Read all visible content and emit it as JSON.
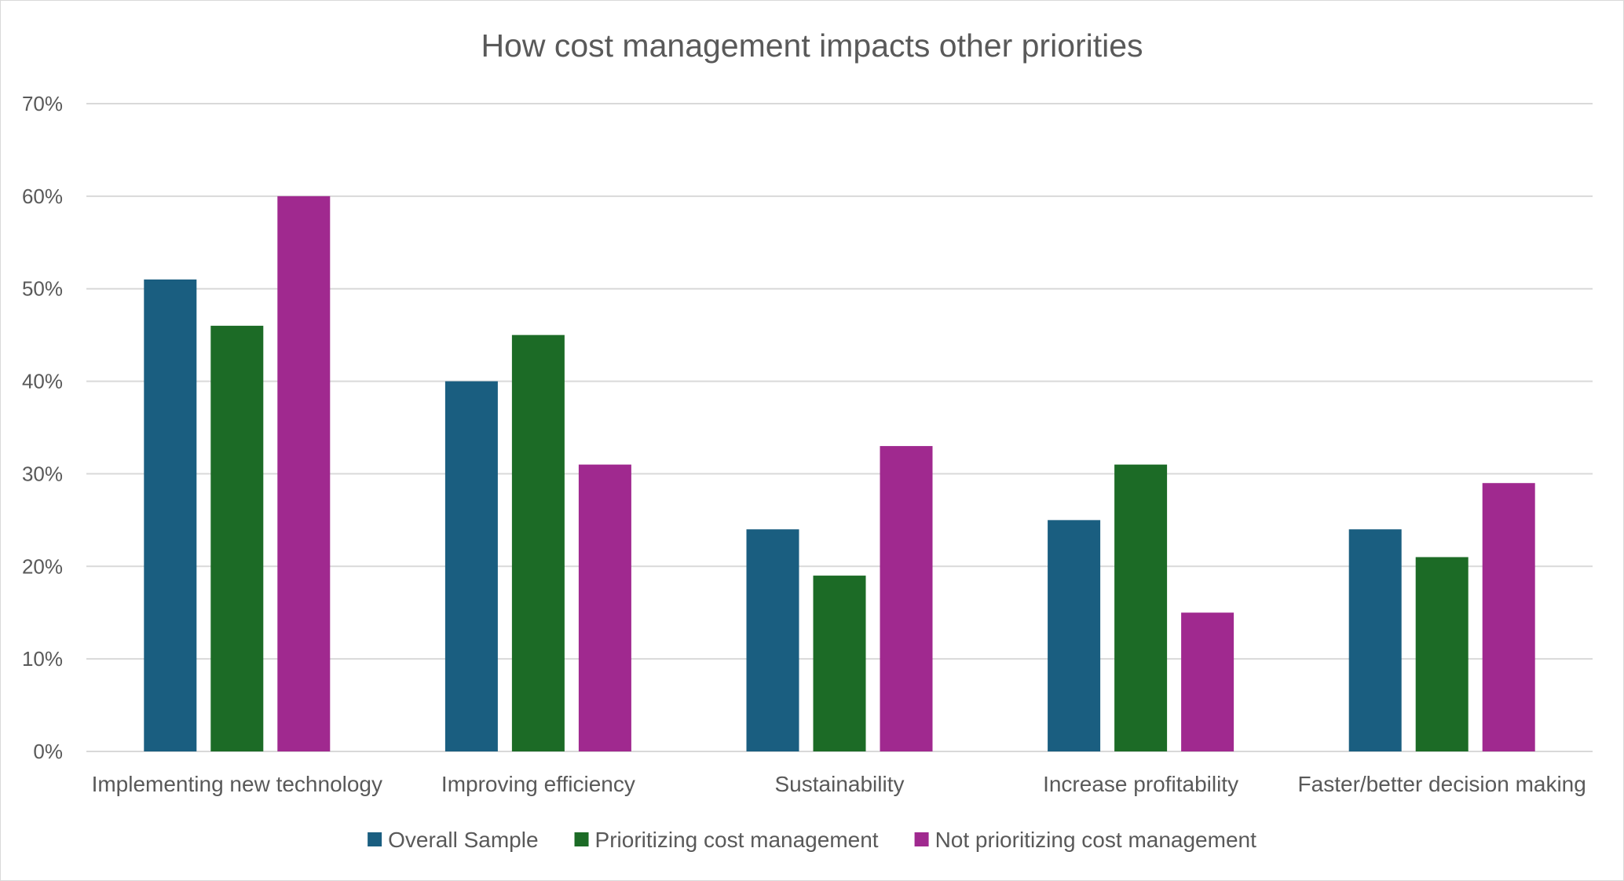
{
  "chart_data": {
    "type": "bar",
    "title": "How cost management impacts other priorities",
    "categories": [
      "Implementing new technology",
      "Improving efficiency",
      "Sustainability",
      "Increase profitability",
      "Faster/better decision making"
    ],
    "series": [
      {
        "name": "Overall Sample",
        "color": "#1a5e80",
        "values": [
          51,
          40,
          24,
          25,
          24
        ]
      },
      {
        "name": "Prioritizing cost management",
        "color": "#1c6b26",
        "values": [
          46,
          45,
          19,
          31,
          21
        ]
      },
      {
        "name": "Not prioritizing cost management",
        "color": "#a0298f",
        "values": [
          60,
          31,
          33,
          15,
          29
        ]
      }
    ],
    "yticks": [
      "0%",
      "10%",
      "20%",
      "30%",
      "40%",
      "50%",
      "60%",
      "70%"
    ],
    "ylim": [
      0,
      70
    ],
    "ylabel": "",
    "xlabel": "",
    "grid": true,
    "legend": "bottom"
  }
}
